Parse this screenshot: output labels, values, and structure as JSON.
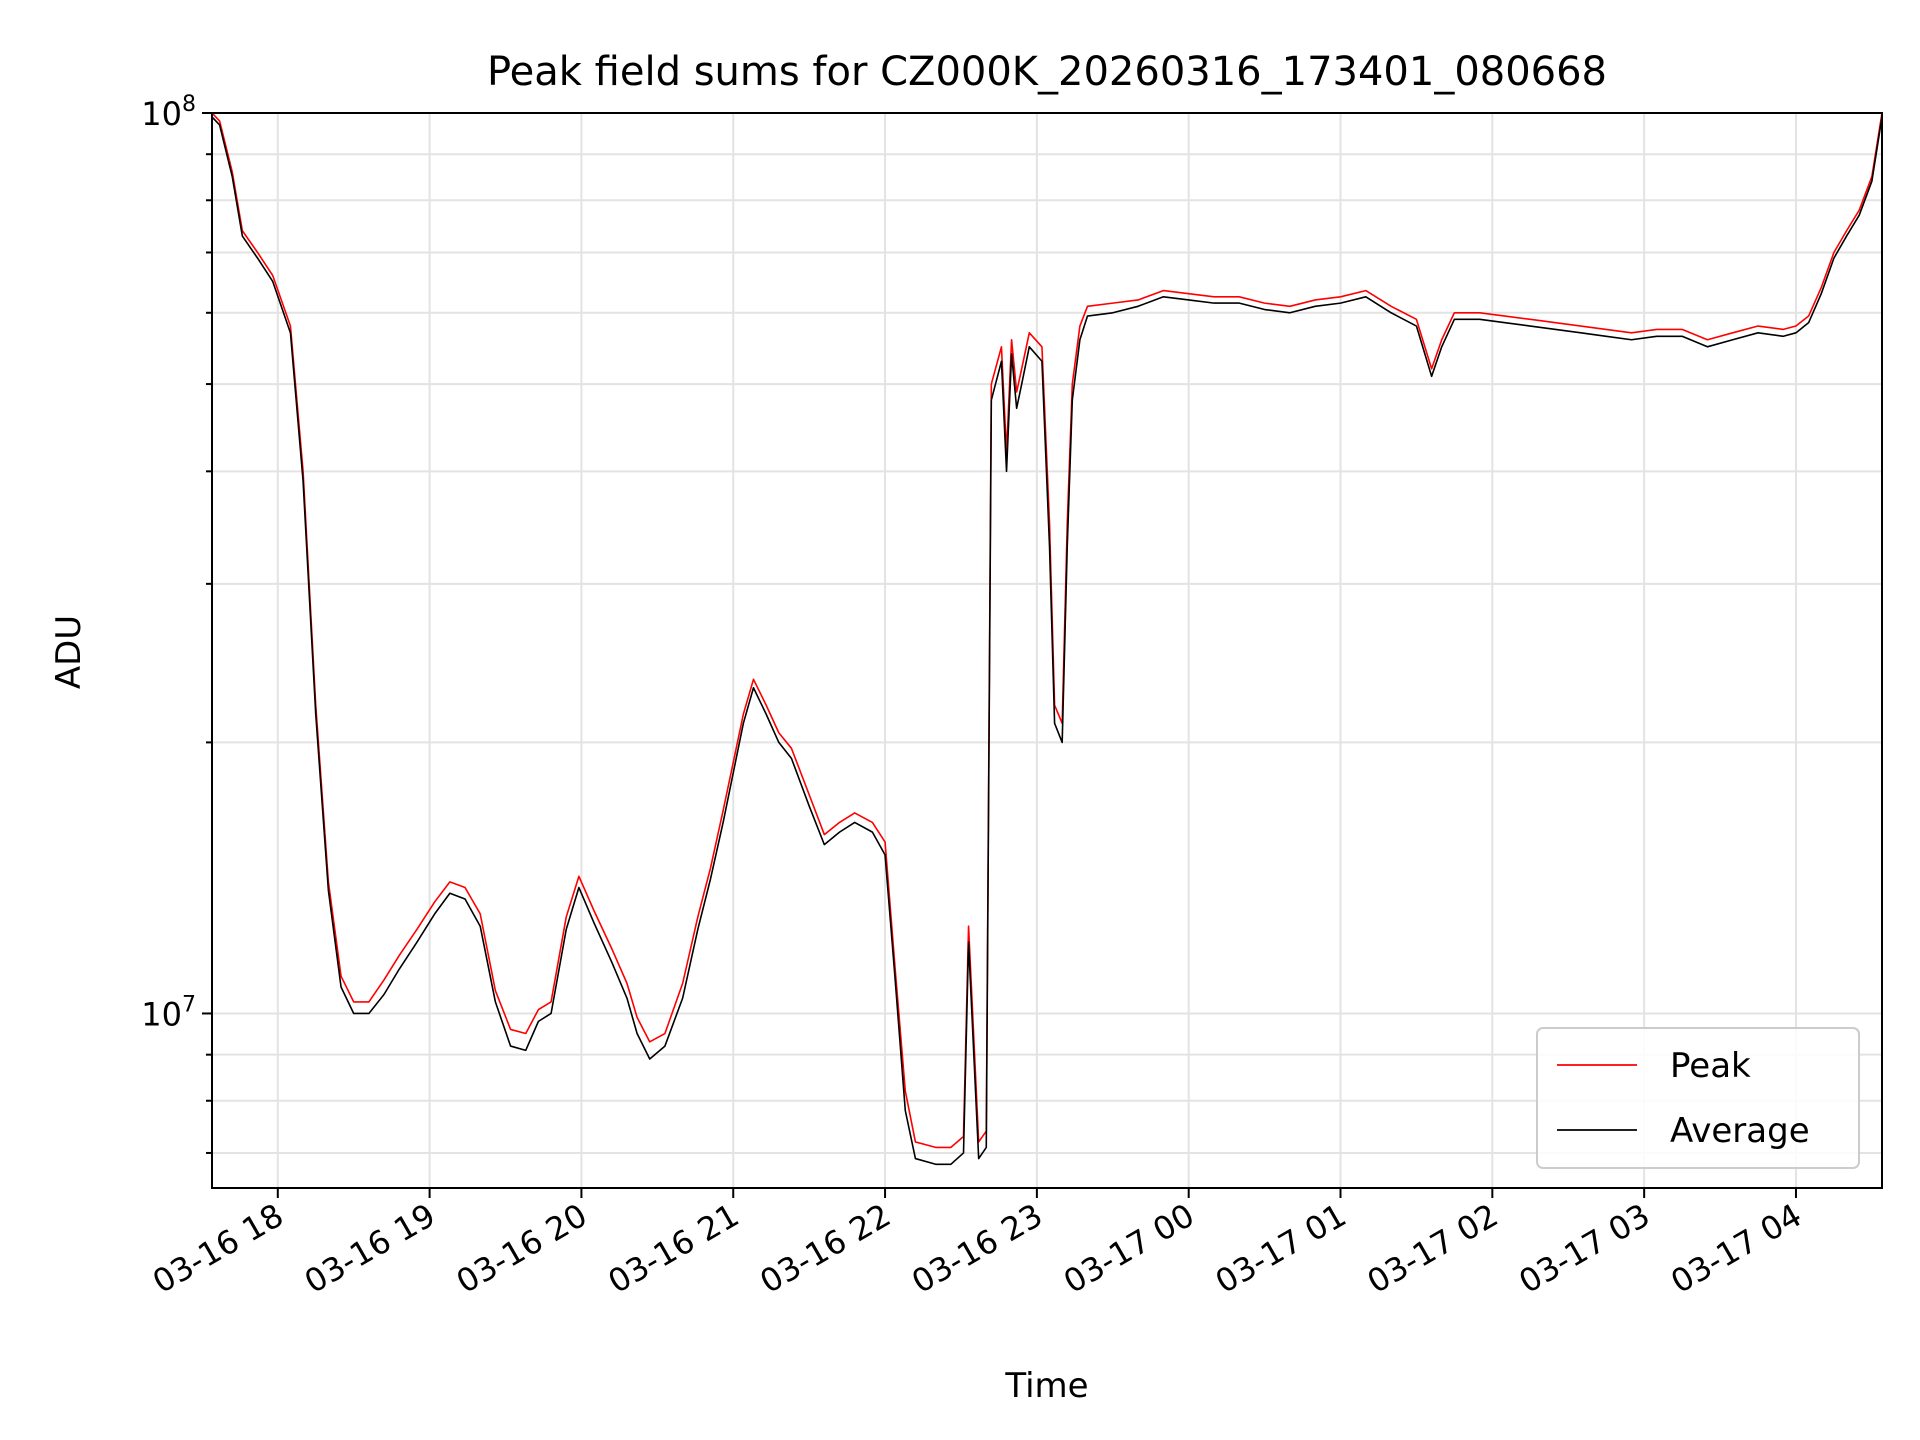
{
  "chart_data": {
    "type": "line",
    "title": "Peak field sums for CZ000K_20260316_173401_080668",
    "xlabel": "Time",
    "ylabel": "ADU",
    "yscale": "log",
    "ylim": [
      6400000,
      100000000
    ],
    "xlim": [
      "2026-03-16 17:34",
      "2026-03-17 04:34"
    ],
    "grid": true,
    "legend_position": "lower-right",
    "x_ticks": [
      {
        "t": "2026-03-16 18:00",
        "label": "03-16 18"
      },
      {
        "t": "2026-03-16 19:00",
        "label": "03-16 19"
      },
      {
        "t": "2026-03-16 20:00",
        "label": "03-16 20"
      },
      {
        "t": "2026-03-16 21:00",
        "label": "03-16 21"
      },
      {
        "t": "2026-03-16 22:00",
        "label": "03-16 22"
      },
      {
        "t": "2026-03-16 23:00",
        "label": "03-16 23"
      },
      {
        "t": "2026-03-17 00:00",
        "label": "03-17 00"
      },
      {
        "t": "2026-03-17 01:00",
        "label": "03-17 01"
      },
      {
        "t": "2026-03-17 02:00",
        "label": "03-17 02"
      },
      {
        "t": "2026-03-17 03:00",
        "label": "03-17 03"
      },
      {
        "t": "2026-03-17 04:00",
        "label": "03-17 04"
      }
    ],
    "y_ticks": [
      {
        "v": 10000000,
        "base": "10",
        "exp": "7"
      },
      {
        "v": 100000000,
        "base": "10",
        "exp": "8"
      }
    ],
    "series": [
      {
        "name": "Peak",
        "color": "#ff0000",
        "x": [
          "2026-03-16 17:34",
          "2026-03-16 17:37",
          "2026-03-16 17:42",
          "2026-03-16 17:46",
          "2026-03-16 17:52",
          "2026-03-16 17:58",
          "2026-03-16 18:05",
          "2026-03-16 18:10",
          "2026-03-16 18:15",
          "2026-03-16 18:20",
          "2026-03-16 18:25",
          "2026-03-16 18:30",
          "2026-03-16 18:36",
          "2026-03-16 18:42",
          "2026-03-16 18:48",
          "2026-03-16 18:55",
          "2026-03-16 19:02",
          "2026-03-16 19:08",
          "2026-03-16 19:14",
          "2026-03-16 19:20",
          "2026-03-16 19:26",
          "2026-03-16 19:32",
          "2026-03-16 19:38",
          "2026-03-16 19:43",
          "2026-03-16 19:48",
          "2026-03-16 19:54",
          "2026-03-16 19:59",
          "2026-03-16 20:05",
          "2026-03-16 20:12",
          "2026-03-16 20:18",
          "2026-03-16 20:22",
          "2026-03-16 20:27",
          "2026-03-16 20:33",
          "2026-03-16 20:40",
          "2026-03-16 20:46",
          "2026-03-16 20:51",
          "2026-03-16 20:56",
          "2026-03-16 21:00",
          "2026-03-16 21:04",
          "2026-03-16 21:08",
          "2026-03-16 21:13",
          "2026-03-16 21:18",
          "2026-03-16 21:23",
          "2026-03-16 21:30",
          "2026-03-16 21:36",
          "2026-03-16 21:42",
          "2026-03-16 21:48",
          "2026-03-16 21:55",
          "2026-03-16 22:00",
          "2026-03-16 22:04",
          "2026-03-16 22:08",
          "2026-03-16 22:12",
          "2026-03-16 22:20",
          "2026-03-16 22:26",
          "2026-03-16 22:31",
          "2026-03-16 22:33",
          "2026-03-16 22:37",
          "2026-03-16 22:40",
          "2026-03-16 22:42",
          "2026-03-16 22:46",
          "2026-03-16 22:48",
          "2026-03-16 22:50",
          "2026-03-16 22:52",
          "2026-03-16 22:54",
          "2026-03-16 22:57",
          "2026-03-16 23:02",
          "2026-03-16 23:05",
          "2026-03-16 23:07",
          "2026-03-16 23:10",
          "2026-03-16 23:12",
          "2026-03-16 23:14",
          "2026-03-16 23:17",
          "2026-03-16 23:20",
          "2026-03-16 23:30",
          "2026-03-16 23:40",
          "2026-03-16 23:50",
          "2026-03-17 00:00",
          "2026-03-17 00:10",
          "2026-03-17 00:20",
          "2026-03-17 00:30",
          "2026-03-17 00:40",
          "2026-03-17 00:50",
          "2026-03-17 01:00",
          "2026-03-17 01:10",
          "2026-03-17 01:20",
          "2026-03-17 01:30",
          "2026-03-17 01:36",
          "2026-03-17 01:40",
          "2026-03-17 01:45",
          "2026-03-17 01:55",
          "2026-03-17 02:05",
          "2026-03-17 02:15",
          "2026-03-17 02:25",
          "2026-03-17 02:35",
          "2026-03-17 02:45",
          "2026-03-17 02:55",
          "2026-03-17 03:05",
          "2026-03-17 03:15",
          "2026-03-17 03:25",
          "2026-03-17 03:35",
          "2026-03-17 03:45",
          "2026-03-17 03:55",
          "2026-03-17 04:00",
          "2026-03-17 04:05",
          "2026-03-17 04:10",
          "2026-03-17 04:15",
          "2026-03-17 04:20",
          "2026-03-17 04:25",
          "2026-03-17 04:30",
          "2026-03-17 04:34"
        ],
        "values": [
          100000000,
          98000000,
          86000000,
          74000000,
          70000000,
          66000000,
          58000000,
          40000000,
          22000000,
          14000000,
          11000000,
          10300000,
          10300000,
          10900000,
          11600000,
          12400000,
          13300000,
          14000000,
          13800000,
          12900000,
          10600000,
          9600000,
          9500000,
          10100000,
          10300000,
          12800000,
          14200000,
          13000000,
          11800000,
          10800000,
          9900000,
          9300000,
          9500000,
          10800000,
          12800000,
          14500000,
          16800000,
          19000000,
          21500000,
          23500000,
          22000000,
          20500000,
          19700000,
          17500000,
          15800000,
          16300000,
          16700000,
          16300000,
          15500000,
          11200000,
          8200000,
          7200000,
          7100000,
          7100000,
          7300000,
          12500000,
          7200000,
          7400000,
          50000000,
          55000000,
          42000000,
          56000000,
          49000000,
          52000000,
          57000000,
          55000000,
          35000000,
          22000000,
          21000000,
          35000000,
          50000000,
          58000000,
          61000000,
          61500000,
          62000000,
          63500000,
          63000000,
          62500000,
          62500000,
          61500000,
          61000000,
          62000000,
          62500000,
          63500000,
          61000000,
          59000000,
          52000000,
          56000000,
          60000000,
          60000000,
          59500000,
          59000000,
          58500000,
          58000000,
          57500000,
          57000000,
          57500000,
          57500000,
          56000000,
          57000000,
          58000000,
          57500000,
          58000000,
          59500000,
          64000000,
          70000000,
          74000000,
          78000000,
          85000000,
          100000000
        ]
      },
      {
        "name": "Average",
        "color": "#000000",
        "x": [
          "2026-03-16 17:34",
          "2026-03-16 17:37",
          "2026-03-16 17:42",
          "2026-03-16 17:46",
          "2026-03-16 17:52",
          "2026-03-16 17:58",
          "2026-03-16 18:05",
          "2026-03-16 18:10",
          "2026-03-16 18:15",
          "2026-03-16 18:20",
          "2026-03-16 18:25",
          "2026-03-16 18:30",
          "2026-03-16 18:36",
          "2026-03-16 18:42",
          "2026-03-16 18:48",
          "2026-03-16 18:55",
          "2026-03-16 19:02",
          "2026-03-16 19:08",
          "2026-03-16 19:14",
          "2026-03-16 19:20",
          "2026-03-16 19:26",
          "2026-03-16 19:32",
          "2026-03-16 19:38",
          "2026-03-16 19:43",
          "2026-03-16 19:48",
          "2026-03-16 19:54",
          "2026-03-16 19:59",
          "2026-03-16 20:05",
          "2026-03-16 20:12",
          "2026-03-16 20:18",
          "2026-03-16 20:22",
          "2026-03-16 20:27",
          "2026-03-16 20:33",
          "2026-03-16 20:40",
          "2026-03-16 20:46",
          "2026-03-16 20:51",
          "2026-03-16 20:56",
          "2026-03-16 21:00",
          "2026-03-16 21:04",
          "2026-03-16 21:08",
          "2026-03-16 21:13",
          "2026-03-16 21:18",
          "2026-03-16 21:23",
          "2026-03-16 21:30",
          "2026-03-16 21:36",
          "2026-03-16 21:42",
          "2026-03-16 21:48",
          "2026-03-16 21:55",
          "2026-03-16 22:00",
          "2026-03-16 22:04",
          "2026-03-16 22:08",
          "2026-03-16 22:12",
          "2026-03-16 22:20",
          "2026-03-16 22:26",
          "2026-03-16 22:31",
          "2026-03-16 22:33",
          "2026-03-16 22:37",
          "2026-03-16 22:40",
          "2026-03-16 22:42",
          "2026-03-16 22:46",
          "2026-03-16 22:48",
          "2026-03-16 22:50",
          "2026-03-16 22:52",
          "2026-03-16 22:54",
          "2026-03-16 22:57",
          "2026-03-16 23:02",
          "2026-03-16 23:05",
          "2026-03-16 23:07",
          "2026-03-16 23:10",
          "2026-03-16 23:12",
          "2026-03-16 23:14",
          "2026-03-16 23:17",
          "2026-03-16 23:20",
          "2026-03-16 23:30",
          "2026-03-16 23:40",
          "2026-03-16 23:50",
          "2026-03-17 00:00",
          "2026-03-17 00:10",
          "2026-03-17 00:20",
          "2026-03-17 00:30",
          "2026-03-17 00:40",
          "2026-03-17 00:50",
          "2026-03-17 01:00",
          "2026-03-17 01:10",
          "2026-03-17 01:20",
          "2026-03-17 01:30",
          "2026-03-17 01:36",
          "2026-03-17 01:40",
          "2026-03-17 01:45",
          "2026-03-17 01:55",
          "2026-03-17 02:05",
          "2026-03-17 02:15",
          "2026-03-17 02:25",
          "2026-03-17 02:35",
          "2026-03-17 02:45",
          "2026-03-17 02:55",
          "2026-03-17 03:05",
          "2026-03-17 03:15",
          "2026-03-17 03:25",
          "2026-03-17 03:35",
          "2026-03-17 03:45",
          "2026-03-17 03:55",
          "2026-03-17 04:00",
          "2026-03-17 04:05",
          "2026-03-17 04:10",
          "2026-03-17 04:15",
          "2026-03-17 04:20",
          "2026-03-17 04:25",
          "2026-03-17 04:30",
          "2026-03-17 04:34"
        ],
        "values": [
          99000000,
          97000000,
          85000000,
          73000000,
          69000000,
          65000000,
          57000000,
          39000000,
          21500000,
          13700000,
          10700000,
          10000000,
          10000000,
          10500000,
          11200000,
          12000000,
          12900000,
          13600000,
          13400000,
          12500000,
          10300000,
          9200000,
          9100000,
          9800000,
          10000000,
          12400000,
          13800000,
          12600000,
          11400000,
          10400000,
          9500000,
          8900000,
          9200000,
          10400000,
          12400000,
          14100000,
          16300000,
          18500000,
          21000000,
          23000000,
          21500000,
          20000000,
          19200000,
          17000000,
          15400000,
          15900000,
          16300000,
          15900000,
          15000000,
          10900000,
          7800000,
          6900000,
          6800000,
          6800000,
          7000000,
          12000000,
          6900000,
          7100000,
          48000000,
          53000000,
          40000000,
          54000000,
          47000000,
          50000000,
          55000000,
          53000000,
          33000000,
          21000000,
          20000000,
          33000000,
          48000000,
          56000000,
          59500000,
          60000000,
          61000000,
          62500000,
          62000000,
          61500000,
          61500000,
          60500000,
          60000000,
          61000000,
          61500000,
          62500000,
          60000000,
          58000000,
          51000000,
          55000000,
          59000000,
          59000000,
          58500000,
          58000000,
          57500000,
          57000000,
          56500000,
          56000000,
          56500000,
          56500000,
          55000000,
          56000000,
          57000000,
          56500000,
          57000000,
          58500000,
          63000000,
          69000000,
          73000000,
          77000000,
          84000000,
          99000000
        ]
      }
    ]
  }
}
